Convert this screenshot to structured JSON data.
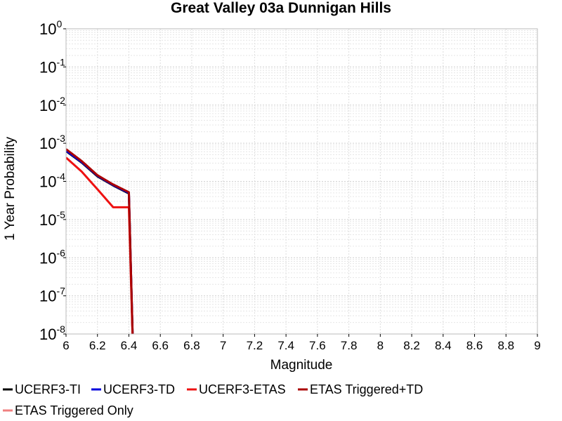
{
  "chart_data": {
    "type": "line",
    "title": "Great Valley 03a Dunnigan Hills",
    "xlabel": "Magnitude",
    "ylabel": "1 Year Probability",
    "xlim": [
      6,
      9
    ],
    "ylim": [
      1e-08,
      1
    ],
    "yscale": "log",
    "grid": true,
    "x_ticks": [
      "6",
      "6.2",
      "6.4",
      "6.6",
      "6.8",
      "7",
      "7.2",
      "7.4",
      "7.6",
      "7.8",
      "8",
      "8.2",
      "8.4",
      "8.6",
      "8.8",
      "9"
    ],
    "y_ticks": [
      {
        "base": "10",
        "exp": "0",
        "value": 1
      },
      {
        "base": "10",
        "exp": "-1",
        "value": 0.1
      },
      {
        "base": "10",
        "exp": "-2",
        "value": 0.01
      },
      {
        "base": "10",
        "exp": "-3",
        "value": 0.001
      },
      {
        "base": "10",
        "exp": "-4",
        "value": 0.0001
      },
      {
        "base": "10",
        "exp": "-5",
        "value": 1e-05
      },
      {
        "base": "10",
        "exp": "-6",
        "value": 1e-06
      },
      {
        "base": "10",
        "exp": "-7",
        "value": 1e-07
      },
      {
        "base": "10",
        "exp": "-8",
        "value": 1e-08
      }
    ],
    "legend_placement": "bottom",
    "series": [
      {
        "name": "UCERF3-TI",
        "color": "#000000",
        "points": [
          [
            6.0,
            0.00062
          ],
          [
            6.1,
            0.00031
          ],
          [
            6.2,
            0.000135
          ],
          [
            6.3,
            7.8e-05
          ],
          [
            6.4,
            4.8e-05
          ],
          [
            6.43,
            1e-09
          ]
        ]
      },
      {
        "name": "UCERF3-TD",
        "color": "#0000dd",
        "points": [
          [
            6.0,
            0.00064
          ],
          [
            6.1,
            0.00032
          ],
          [
            6.2,
            0.00014
          ],
          [
            6.3,
            8e-05
          ],
          [
            6.4,
            5e-05
          ],
          [
            6.43,
            1e-09
          ]
        ]
      },
      {
        "name": "UCERF3-ETAS",
        "color": "#ee1111",
        "points": [
          [
            6.0,
            0.00042
          ],
          [
            6.1,
            0.00018
          ],
          [
            6.2,
            6.2e-05
          ],
          [
            6.3,
            2.1e-05
          ],
          [
            6.4,
            2.1e-05
          ],
          [
            6.43,
            1e-09
          ]
        ]
      },
      {
        "name": "ETAS Triggered+TD",
        "color": "#aa0000",
        "points": [
          [
            6.0,
            0.0007
          ],
          [
            6.1,
            0.00034
          ],
          [
            6.2,
            0.000145
          ],
          [
            6.3,
            8.3e-05
          ],
          [
            6.4,
            5.2e-05
          ],
          [
            6.43,
            1e-09
          ]
        ]
      },
      {
        "name": "ETAS Triggered Only",
        "color": "#f08080",
        "points": []
      }
    ]
  }
}
